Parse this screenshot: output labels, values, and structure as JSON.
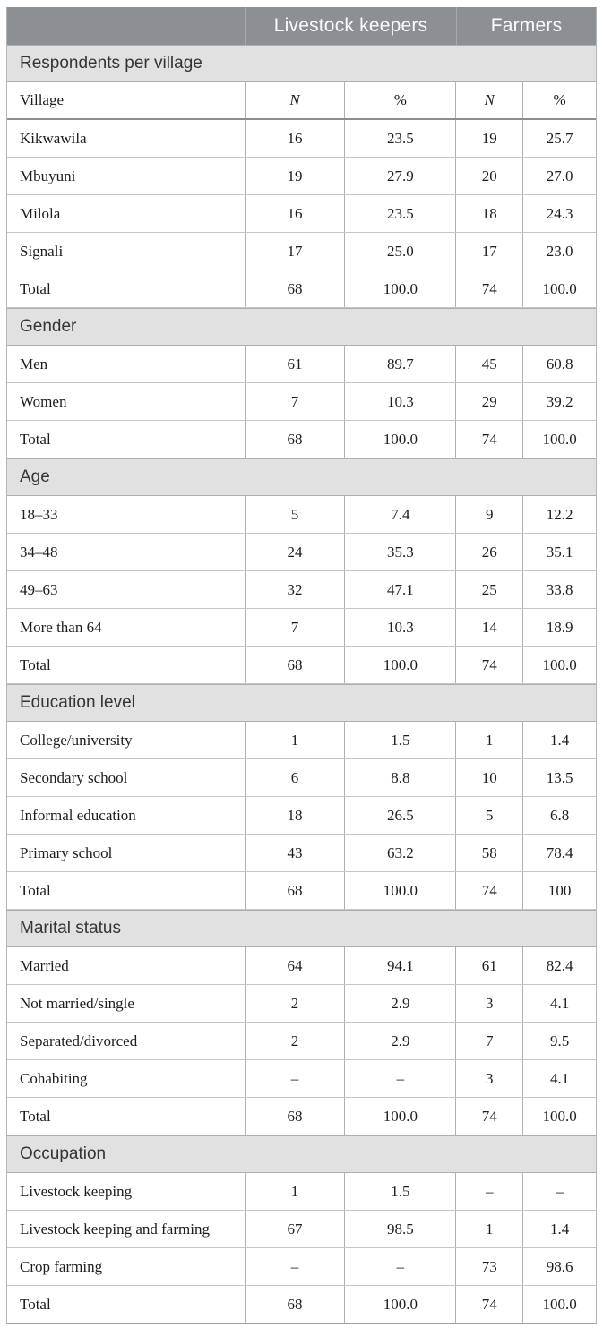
{
  "colors": {
    "header_bg": "#8b9094",
    "header_text": "#fbfbfb",
    "section_bg": "#e1e1e1"
  },
  "table": {
    "column_groups": [
      {
        "label": "Livestock keepers"
      },
      {
        "label": "Farmers"
      }
    ],
    "subheader": {
      "label": "Village",
      "cols": [
        "N",
        "%",
        "N",
        "%"
      ]
    },
    "sections": [
      {
        "title": "Respondents per village",
        "rows": [
          {
            "label": "Kikwawila",
            "values": [
              "16",
              "23.5",
              "19",
              "25.7"
            ]
          },
          {
            "label": "Mbuyuni",
            "values": [
              "19",
              "27.9",
              "20",
              "27.0"
            ]
          },
          {
            "label": "Milola",
            "values": [
              "16",
              "23.5",
              "18",
              "24.3"
            ]
          },
          {
            "label": "Signali",
            "values": [
              "17",
              "25.0",
              "17",
              "23.0"
            ]
          },
          {
            "label": "Total",
            "values": [
              "68",
              "100.0",
              "74",
              "100.0"
            ]
          }
        ]
      },
      {
        "title": "Gender",
        "rows": [
          {
            "label": "Men",
            "values": [
              "61",
              "89.7",
              "45",
              "60.8"
            ]
          },
          {
            "label": "Women",
            "values": [
              "7",
              "10.3",
              "29",
              "39.2"
            ]
          },
          {
            "label": "Total",
            "values": [
              "68",
              "100.0",
              "74",
              "100.0"
            ]
          }
        ]
      },
      {
        "title": "Age",
        "rows": [
          {
            "label": "18–33",
            "values": [
              "5",
              "7.4",
              "9",
              "12.2"
            ]
          },
          {
            "label": "34–48",
            "values": [
              "24",
              "35.3",
              "26",
              "35.1"
            ]
          },
          {
            "label": "49–63",
            "values": [
              "32",
              "47.1",
              "25",
              "33.8"
            ]
          },
          {
            "label": "More than 64",
            "values": [
              "7",
              "10.3",
              "14",
              "18.9"
            ]
          },
          {
            "label": "Total",
            "values": [
              "68",
              "100.0",
              "74",
              "100.0"
            ]
          }
        ]
      },
      {
        "title": "Education level",
        "rows": [
          {
            "label": "College/university",
            "values": [
              "1",
              "1.5",
              "1",
              "1.4"
            ]
          },
          {
            "label": "Secondary school",
            "values": [
              "6",
              "8.8",
              "10",
              "13.5"
            ]
          },
          {
            "label": "Informal education",
            "values": [
              "18",
              "26.5",
              "5",
              "6.8"
            ]
          },
          {
            "label": "Primary school",
            "values": [
              "43",
              "63.2",
              "58",
              "78.4"
            ]
          },
          {
            "label": "Total",
            "values": [
              "68",
              "100.0",
              "74",
              "100"
            ]
          }
        ]
      },
      {
        "title": "Marital status",
        "rows": [
          {
            "label": "Married",
            "values": [
              "64",
              "94.1",
              "61",
              "82.4"
            ]
          },
          {
            "label": "Not married/single",
            "values": [
              "2",
              "2.9",
              "3",
              "4.1"
            ]
          },
          {
            "label": "Separated/divorced",
            "values": [
              "2",
              "2.9",
              "7",
              "9.5"
            ]
          },
          {
            "label": "Cohabiting",
            "values": [
              "–",
              "–",
              "3",
              "4.1"
            ]
          },
          {
            "label": "Total",
            "values": [
              "68",
              "100.0",
              "74",
              "100.0"
            ]
          }
        ]
      },
      {
        "title": "Occupation",
        "rows": [
          {
            "label": "Livestock keeping",
            "values": [
              "1",
              "1.5",
              "–",
              "–"
            ]
          },
          {
            "label": "Livestock keeping and farming",
            "values": [
              "67",
              "98.5",
              "1",
              "1.4"
            ]
          },
          {
            "label": "Crop farming",
            "values": [
              "–",
              "–",
              "73",
              "98.6"
            ]
          },
          {
            "label": "Total",
            "values": [
              "68",
              "100.0",
              "74",
              "100.0"
            ]
          }
        ]
      }
    ]
  }
}
